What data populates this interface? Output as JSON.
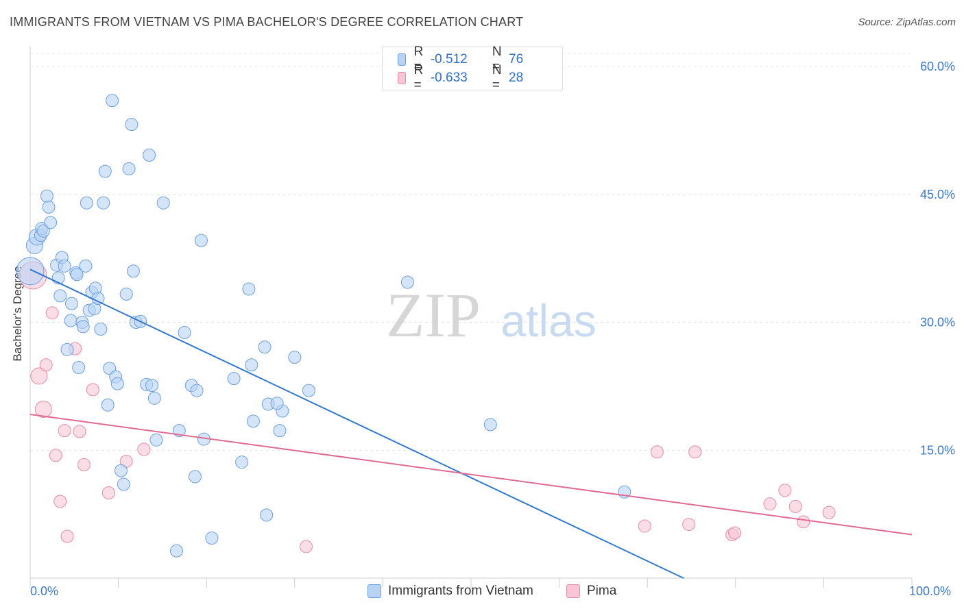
{
  "header": {
    "title": "IMMIGRANTS FROM VIETNAM VS PIMA BACHELOR'S DEGREE CORRELATION CHART",
    "source": "Source: ZipAtlas.com"
  },
  "watermark": {
    "zip": "ZIP",
    "atlas": "atlas"
  },
  "legend": {
    "rows": [
      {
        "r_label": "R =",
        "r_value": "-0.512",
        "n_label": "N =",
        "n_value": "76"
      },
      {
        "r_label": "R =",
        "r_value": "-0.633",
        "n_label": "N =",
        "n_value": "28"
      }
    ]
  },
  "bottom_legend": {
    "series1": "Immigrants from Vietnam",
    "series2": "Pima"
  },
  "colors": {
    "series1_fill": "#b9d3f5",
    "series1_stroke": "#6a9fdf",
    "series1_line": "#2f78d6",
    "series2_fill": "#f8c6d6",
    "series2_stroke": "#e88aa8",
    "series2_line": "#e06a94",
    "axis_label": "#3a78d0",
    "grid": "#e4e4e4"
  },
  "chart_data": {
    "type": "scatter",
    "title": "IMMIGRANTS FROM VIETNAM VS PIMA BACHELOR'S DEGREE CORRELATION CHART",
    "xlabel": "",
    "ylabel": "Bachelor's Degree",
    "xlim": [
      0,
      100
    ],
    "ylim": [
      0,
      62
    ],
    "x_tick_labels": [
      "0.0%",
      "100.0%"
    ],
    "y_ticks": [
      15,
      30,
      45,
      60
    ],
    "y_tick_labels": [
      "15.0%",
      "30.0%",
      "45.0%",
      "60.0%"
    ],
    "grid": true,
    "legend_position": "top-center",
    "series": [
      {
        "name": "Immigrants from Vietnam",
        "r": -0.512,
        "n": 76,
        "trend": {
          "x": [
            0,
            74.1
          ],
          "y": [
            36.2,
            0
          ]
        },
        "points": [
          [
            0,
            36
          ],
          [
            0.5,
            39
          ],
          [
            0.8,
            40
          ],
          [
            1.2,
            40.2
          ],
          [
            1.3,
            41
          ],
          [
            1.5,
            40.7
          ],
          [
            1.9,
            44.8
          ],
          [
            2.1,
            43.5
          ],
          [
            2.3,
            41.7
          ],
          [
            3.0,
            36.7
          ],
          [
            3.2,
            35.2
          ],
          [
            3.4,
            33.1
          ],
          [
            3.6,
            37.6
          ],
          [
            3.9,
            36.6
          ],
          [
            4.2,
            26.8
          ],
          [
            4.6,
            30.2
          ],
          [
            4.7,
            32.2
          ],
          [
            5.2,
            35.8
          ],
          [
            5.3,
            35.6
          ],
          [
            5.5,
            24.7
          ],
          [
            5.9,
            30.0
          ],
          [
            6.0,
            29.5
          ],
          [
            6.3,
            36.6
          ],
          [
            6.4,
            44.0
          ],
          [
            6.7,
            31.4
          ],
          [
            7.0,
            33.5
          ],
          [
            7.3,
            31.6
          ],
          [
            7.4,
            34.0
          ],
          [
            7.7,
            32.8
          ],
          [
            8.0,
            29.2
          ],
          [
            8.3,
            44.0
          ],
          [
            8.5,
            47.7
          ],
          [
            8.8,
            20.3
          ],
          [
            9.0,
            24.6
          ],
          [
            9.3,
            56.0
          ],
          [
            9.7,
            23.6
          ],
          [
            9.9,
            22.8
          ],
          [
            10.3,
            12.6
          ],
          [
            10.6,
            11.0
          ],
          [
            10.9,
            33.3
          ],
          [
            11.2,
            48.0
          ],
          [
            11.5,
            53.2
          ],
          [
            11.7,
            36.0
          ],
          [
            12.0,
            30.0
          ],
          [
            12.5,
            30.1
          ],
          [
            13.2,
            22.7
          ],
          [
            13.5,
            49.6
          ],
          [
            13.8,
            22.6
          ],
          [
            14.1,
            21.1
          ],
          [
            14.3,
            16.2
          ],
          [
            15.1,
            44.0
          ],
          [
            16.6,
            3.2
          ],
          [
            16.9,
            17.3
          ],
          [
            17.5,
            28.8
          ],
          [
            18.3,
            22.6
          ],
          [
            18.7,
            11.9
          ],
          [
            18.9,
            22.0
          ],
          [
            19.4,
            39.6
          ],
          [
            19.7,
            16.3
          ],
          [
            20.6,
            4.7
          ],
          [
            23.1,
            23.4
          ],
          [
            24.0,
            13.6
          ],
          [
            24.8,
            33.9
          ],
          [
            25.1,
            25.0
          ],
          [
            25.3,
            18.4
          ],
          [
            26.6,
            27.1
          ],
          [
            26.8,
            7.4
          ],
          [
            27.0,
            20.4
          ],
          [
            28.3,
            17.3
          ],
          [
            28.6,
            19.6
          ],
          [
            30.0,
            25.9
          ],
          [
            31.6,
            22.0
          ],
          [
            42.8,
            34.7
          ],
          [
            52.2,
            18.0
          ],
          [
            67.4,
            10.1
          ],
          [
            28.0,
            20.5
          ]
        ]
      },
      {
        "name": "Pima",
        "r": -0.633,
        "n": 28,
        "trend": {
          "x": [
            0,
            100
          ],
          "y": [
            19.2,
            5.1
          ]
        },
        "points": [
          [
            0.3,
            35.5
          ],
          [
            1.0,
            23.7
          ],
          [
            1.5,
            19.8
          ],
          [
            1.8,
            25.0
          ],
          [
            2.5,
            31.1
          ],
          [
            2.9,
            14.4
          ],
          [
            3.4,
            9.0
          ],
          [
            3.9,
            17.3
          ],
          [
            4.2,
            4.9
          ],
          [
            5.1,
            26.9
          ],
          [
            5.6,
            17.2
          ],
          [
            6.1,
            13.3
          ],
          [
            7.1,
            22.1
          ],
          [
            8.9,
            10.0
          ],
          [
            10.9,
            13.7
          ],
          [
            12.9,
            15.1
          ],
          [
            31.3,
            3.7
          ],
          [
            69.7,
            6.1
          ],
          [
            71.1,
            14.8
          ],
          [
            74.7,
            6.3
          ],
          [
            75.4,
            14.8
          ],
          [
            79.6,
            5.1
          ],
          [
            79.9,
            5.3
          ],
          [
            83.9,
            8.7
          ],
          [
            85.6,
            10.3
          ],
          [
            86.8,
            8.4
          ],
          [
            87.7,
            6.6
          ],
          [
            90.6,
            7.7
          ]
        ]
      }
    ]
  }
}
